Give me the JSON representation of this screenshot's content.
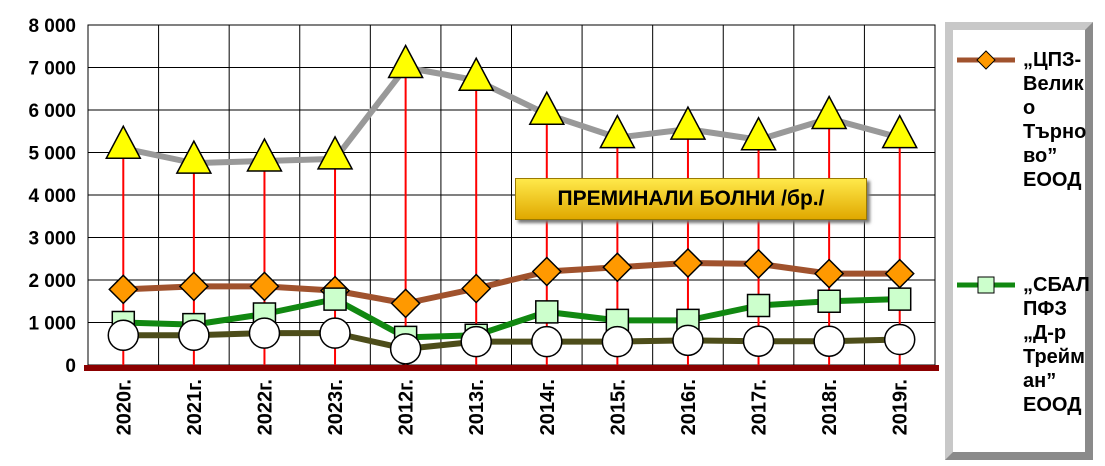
{
  "chart_data": {
    "type": "line",
    "annotation": "ПРЕМИНАЛИ БОЛНИ /бр./",
    "categories": [
      "2020г.",
      "2021г.",
      "2022г.",
      "2023г.",
      "2012г.",
      "2013г.",
      "2014г.",
      "2015г.",
      "2016г.",
      "2017г.",
      "2018г.",
      "2019г."
    ],
    "series": [
      {
        "color": "#999999",
        "marker": "triangle",
        "marker_color": "#ffff00",
        "values": [
          5100,
          4750,
          4800,
          4850,
          7000,
          6700,
          5900,
          5350,
          5550,
          5300,
          5800,
          5350
        ]
      },
      {
        "name": "„ЦПЗ-Велико Търново” ЕООД",
        "color": "#a0522d",
        "marker": "diamond",
        "marker_color": "#ff9900",
        "values": [
          1780,
          1850,
          1850,
          1750,
          1450,
          1800,
          2200,
          2300,
          2400,
          2380,
          2150,
          2150
        ]
      },
      {
        "name": "„СБАЛ ПФЗ „Д-р Трейман” ЕООД",
        "color": "#118811",
        "marker": "square",
        "marker_color": "#ccffcc",
        "values": [
          1000,
          950,
          1200,
          1550,
          650,
          700,
          1250,
          1050,
          1050,
          1400,
          1500,
          1550
        ]
      },
      {
        "color": "#4d4d1a",
        "marker": "circle",
        "marker_color": "#ffffff",
        "values": [
          700,
          700,
          750,
          750,
          380,
          550,
          550,
          550,
          580,
          560,
          560,
          600
        ]
      }
    ],
    "ylim": [
      0,
      8000
    ],
    "yticks": [
      0,
      {
        "value": 1000,
        "label": "1 000"
      },
      {
        "value": 2000,
        "label": "2 000"
      },
      {
        "value": 3000,
        "label": "3 000"
      },
      {
        "value": 4000,
        "label": "4 000"
      },
      {
        "value": 5000,
        "label": "5 000"
      },
      {
        "value": 6000,
        "label": "6 000"
      },
      {
        "value": 7000,
        "label": "7 000"
      },
      {
        "value": 8000,
        "label": "8 000"
      }
    ],
    "grid": true
  }
}
